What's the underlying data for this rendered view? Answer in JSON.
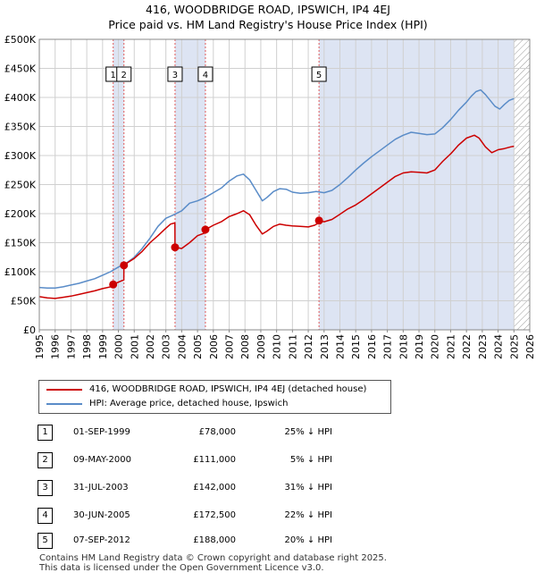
{
  "title_line1": "416, WOODBRIDGE ROAD, IPSWICH, IP4 4EJ",
  "title_line2": "Price paid vs. HM Land Registry's House Price Index (HPI)",
  "colors": {
    "property": "#cc0000",
    "hpi": "#5a8cc8",
    "shade": "#dde4f3",
    "grid": "#d0d0d0",
    "marker_line": "#e05a5a"
  },
  "legend": {
    "property": "416, WOODBRIDGE ROAD, IPSWICH, IP4 4EJ (detached house)",
    "hpi": "HPI: Average price, detached house, Ipswich"
  },
  "sales": [
    {
      "num": "1",
      "date": "01-SEP-1999",
      "price": "£78,000",
      "hpi": "25% ↓ HPI"
    },
    {
      "num": "2",
      "date": "09-MAY-2000",
      "price": "£111,000",
      "hpi": "5% ↓ HPI"
    },
    {
      "num": "3",
      "date": "31-JUL-2003",
      "price": "£142,000",
      "hpi": "31% ↓ HPI"
    },
    {
      "num": "4",
      "date": "30-JUN-2005",
      "price": "£172,500",
      "hpi": "22% ↓ HPI"
    },
    {
      "num": "5",
      "date": "07-SEP-2012",
      "price": "£188,000",
      "hpi": "20% ↓ HPI"
    }
  ],
  "footer_line1": "Contains HM Land Registry data © Crown copyright and database right 2025.",
  "footer_line2": "This data is licensed under the Open Government Licence v3.0.",
  "chart_data": {
    "type": "line",
    "title": "416, WOODBRIDGE ROAD, IPSWICH, IP4 4EJ — Price paid vs. HM Land Registry's House Price Index (HPI)",
    "xlabel": "",
    "ylabel": "",
    "xlim": [
      1995,
      2026
    ],
    "ylim": [
      0,
      500000
    ],
    "x_ticks": [
      1995,
      1996,
      1997,
      1998,
      1999,
      2000,
      2001,
      2002,
      2003,
      2004,
      2005,
      2006,
      2007,
      2008,
      2009,
      2010,
      2011,
      2012,
      2013,
      2014,
      2015,
      2016,
      2017,
      2018,
      2019,
      2020,
      2021,
      2022,
      2023,
      2024,
      2025,
      2026
    ],
    "y_ticks": [
      0,
      50000,
      100000,
      150000,
      200000,
      250000,
      300000,
      350000,
      400000,
      450000,
      500000
    ],
    "y_tick_labels": [
      "£0",
      "£50K",
      "£100K",
      "£150K",
      "£200K",
      "£250K",
      "£300K",
      "£350K",
      "£400K",
      "£450K",
      "£500K"
    ],
    "shaded_ranges": [
      [
        1999.67,
        2000.35
      ],
      [
        2003.58,
        2005.5
      ],
      [
        2012.68,
        2025.0
      ]
    ],
    "hatched_range": [
      2025.0,
      2026
    ],
    "sale_markers": [
      {
        "label": "1",
        "x": 1999.67,
        "y": 78000
      },
      {
        "label": "2",
        "x": 2000.35,
        "y": 111000
      },
      {
        "label": "3",
        "x": 2003.58,
        "y": 142000
      },
      {
        "label": "4",
        "x": 2005.5,
        "y": 172500
      },
      {
        "label": "5",
        "x": 2012.68,
        "y": 188000
      }
    ],
    "series": [
      {
        "name": "416, WOODBRIDGE ROAD, IPSWICH, IP4 4EJ (detached house)",
        "x": [
          1995,
          1995.5,
          1996,
          1996.5,
          1997,
          1997.5,
          1998,
          1998.5,
          1999,
          1999.66,
          1999.67,
          2000.0,
          2000.34,
          2000.35,
          2000.6,
          2001,
          2001.5,
          2002,
          2002.5,
          2003,
          2003.3,
          2003.57,
          2003.58,
          2004.0,
          2004.5,
          2005.0,
          2005.49,
          2005.5,
          2006,
          2006.5,
          2007,
          2007.5,
          2007.9,
          2008.3,
          2008.7,
          2009.1,
          2009.4,
          2009.8,
          2010.2,
          2010.6,
          2011,
          2011.5,
          2012,
          2012.4,
          2012.67,
          2012.68,
          2013,
          2013.5,
          2014,
          2014.5,
          2015,
          2015.5,
          2016,
          2016.5,
          2017,
          2017.5,
          2018,
          2018.5,
          2019,
          2019.5,
          2020,
          2020.5,
          2021,
          2021.5,
          2022,
          2022.5,
          2022.8,
          2023.2,
          2023.6,
          2024,
          2024.4,
          2024.8,
          2025.0
        ],
        "y": [
          57000,
          55000,
          54000,
          56000,
          58000,
          61000,
          64000,
          67000,
          71000,
          75000,
          78000,
          82000,
          86000,
          111000,
          116000,
          123000,
          135000,
          150000,
          162000,
          175000,
          182000,
          184000,
          142000,
          140000,
          150000,
          162000,
          167000,
          172500,
          180000,
          186000,
          195000,
          200000,
          205000,
          198000,
          180000,
          165000,
          170000,
          178000,
          182000,
          180000,
          179000,
          178000,
          177000,
          180000,
          184000,
          188000,
          186000,
          190000,
          199000,
          208000,
          215000,
          224000,
          234000,
          244000,
          254000,
          264000,
          270000,
          272000,
          271000,
          270000,
          275000,
          290000,
          303000,
          318000,
          330000,
          335000,
          330000,
          315000,
          305000,
          310000,
          312000,
          315000,
          316000
        ]
      },
      {
        "name": "HPI: Average price, detached house, Ipswich",
        "x": [
          1995,
          1995.5,
          1996,
          1996.5,
          1997,
          1997.5,
          1998,
          1998.5,
          1999,
          1999.5,
          2000,
          2000.5,
          2001,
          2001.5,
          2002,
          2002.5,
          2003,
          2003.5,
          2004,
          2004.5,
          2005,
          2005.5,
          2006,
          2006.5,
          2007,
          2007.5,
          2007.9,
          2008.3,
          2008.7,
          2009.1,
          2009.4,
          2009.8,
          2010.2,
          2010.6,
          2011,
          2011.5,
          2012,
          2012.5,
          2013,
          2013.5,
          2014,
          2014.5,
          2015,
          2015.5,
          2016,
          2016.5,
          2017,
          2017.5,
          2018,
          2018.5,
          2019,
          2019.5,
          2020,
          2020.5,
          2021,
          2021.5,
          2022,
          2022.3,
          2022.6,
          2022.9,
          2023.2,
          2023.5,
          2023.8,
          2024.1,
          2024.4,
          2024.7,
          2025.0
        ],
        "y": [
          73000,
          72000,
          72000,
          74000,
          77000,
          80000,
          84000,
          88000,
          94000,
          100000,
          108000,
          115000,
          125000,
          140000,
          158000,
          178000,
          192000,
          198000,
          205000,
          218000,
          222000,
          228000,
          236000,
          244000,
          256000,
          265000,
          268000,
          258000,
          240000,
          222000,
          228000,
          238000,
          243000,
          242000,
          237000,
          235000,
          236000,
          238000,
          236000,
          240000,
          250000,
          262000,
          275000,
          287000,
          298000,
          308000,
          318000,
          328000,
          335000,
          340000,
          338000,
          336000,
          337000,
          348000,
          362000,
          378000,
          392000,
          402000,
          410000,
          413000,
          405000,
          395000,
          385000,
          380000,
          388000,
          395000,
          398000
        ]
      }
    ]
  }
}
